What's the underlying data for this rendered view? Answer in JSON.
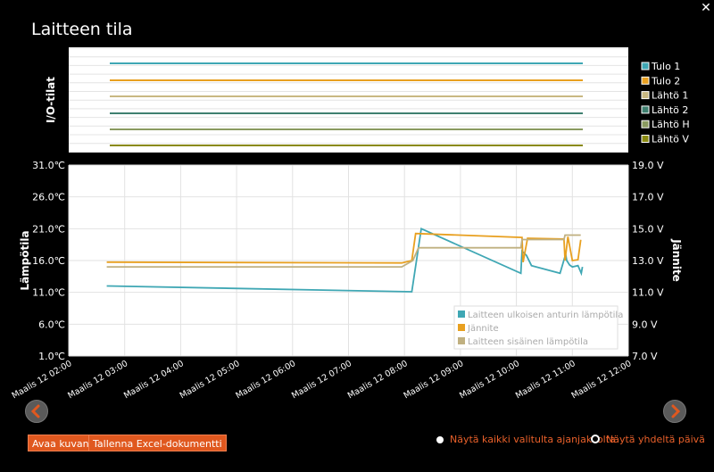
{
  "window": {
    "title": "Laitteen tila",
    "close_label": "✕"
  },
  "io_panel": {
    "ylabel": "I/O-tilat",
    "legend": [
      {
        "label": "Tulo 1",
        "color": "#3fa7b4"
      },
      {
        "label": "Tulo 2",
        "color": "#e8a020"
      },
      {
        "label": "Lähtö 1",
        "color": "#c8b882"
      },
      {
        "label": "Lähtö 2",
        "color": "#3f8070"
      },
      {
        "label": "Lähtö H",
        "color": "#8a9a60"
      },
      {
        "label": "Lähtö V",
        "color": "#8a8a10"
      }
    ]
  },
  "chart_data": {
    "type": "line",
    "ylabel": "Lämpötila",
    "y2label": "Jännite",
    "ylim": [
      1,
      31
    ],
    "y2lim": [
      7,
      19
    ],
    "y_ticks": [
      "31.0℃",
      "26.0℃",
      "21.0℃",
      "16.0℃",
      "11.0℃",
      "6.0℃",
      "1.0℃"
    ],
    "y2_ticks": [
      "19.0 V",
      "17.0 V",
      "15.0 V",
      "13.0 V",
      "11.0 V",
      "9.0 V",
      "7.0 V"
    ],
    "x_ticks": [
      "Maalis 12 02:00",
      "Maalis 12 03:00",
      "Maalis 12 04:00",
      "Maalis 12 05:00",
      "Maalis 12 06:00",
      "Maalis 12 07:00",
      "Maalis 12 08:00",
      "Maalis 12 09:00",
      "Maalis 12 10:00",
      "Maalis 12 11:00",
      "Maalis 12 12:00"
    ],
    "xlim": [
      2,
      12
    ],
    "grid": true,
    "legend_position": "bottom-right",
    "series": [
      {
        "name": "Laitteen ulkoisen anturin lämpötila",
        "color": "#3fa7b4",
        "axis": "left",
        "x": [
          2.68,
          8.13,
          8.3,
          10.08,
          10.1,
          10.18,
          10.27,
          10.78,
          10.88,
          10.9,
          10.95,
          11.0,
          11.1,
          11.16,
          11.18
        ],
        "y": [
          12.0,
          11.1,
          21.0,
          14.0,
          17.5,
          16.8,
          15.2,
          14.0,
          17.0,
          16.0,
          15.3,
          15.0,
          15.2,
          14.0,
          15.0
        ]
      },
      {
        "name": "Jännite",
        "color": "#e8a020",
        "axis": "right",
        "x": [
          2.68,
          7.95,
          8.13,
          8.2,
          10.1,
          10.12,
          10.2,
          10.85,
          10.87,
          10.92,
          11.0,
          11.1,
          11.15
        ],
        "y": [
          12.9,
          12.85,
          13.0,
          14.7,
          14.45,
          12.9,
          14.4,
          14.35,
          13.0,
          14.5,
          13.0,
          13.05,
          14.3
        ]
      },
      {
        "name": "Laitteen sisäinen lämpötila",
        "color": "#c0b080",
        "axis": "left",
        "x": [
          2.68,
          7.95,
          8.15,
          8.25,
          10.08,
          10.1,
          10.85,
          10.87,
          11.15
        ],
        "y": [
          15.0,
          15.0,
          16.0,
          18.0,
          18.0,
          19.3,
          19.3,
          20.0,
          20.0
        ]
      }
    ]
  },
  "controls": {
    "open_image": "Avaa kuvana",
    "save_excel": "Tallenna Excel-dokumentti",
    "radio_all": "Näytä kaikki valitulta ajanjaksolta",
    "radio_day": "Näytä yhdeltä päivä"
  }
}
